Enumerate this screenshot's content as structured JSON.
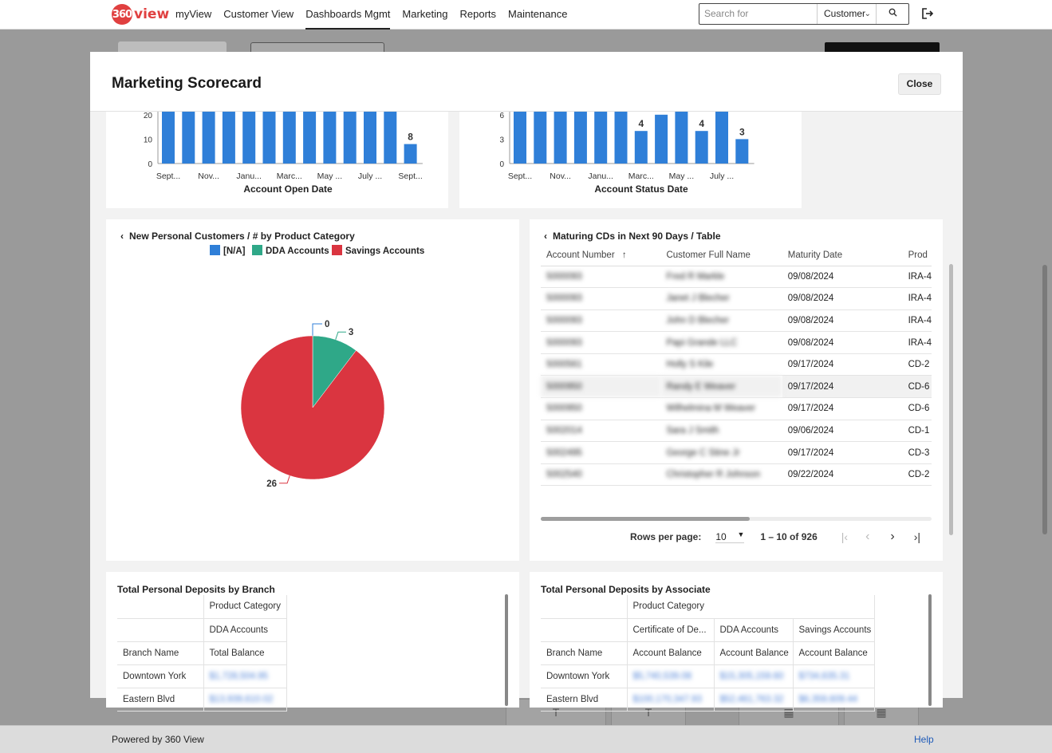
{
  "nav": {
    "logo_number": "360",
    "logo_word": "view",
    "links": [
      "myView",
      "Customer View",
      "Dashboards Mgmt",
      "Marketing",
      "Reports",
      "Maintenance"
    ],
    "active_link": "Dashboards Mgmt",
    "search_placeholder": "Search for",
    "search_scope": "Customer"
  },
  "footer": {
    "powered": "Powered by 360 View",
    "help": "Help"
  },
  "modal": {
    "title": "Marketing Scorecard",
    "close_label": "Close"
  },
  "open_date_chart": {
    "xlabel": "Account Open Date",
    "y_ticks": [
      0,
      10,
      20
    ],
    "x_ticks": [
      "Sept...",
      "Nov...",
      "Janu...",
      "Marc...",
      "May ...",
      "July ...",
      "Sept..."
    ],
    "bar_labels": [
      "8"
    ]
  },
  "status_date_chart": {
    "xlabel": "Account Status Date",
    "y_ticks": [
      0,
      3,
      6
    ],
    "x_ticks": [
      "Sept...",
      "Nov...",
      "Janu...",
      "Marc...",
      "May ...",
      "July ..."
    ],
    "bar_labels": [
      "4",
      "4",
      "3"
    ]
  },
  "chart_data": [
    {
      "type": "bar",
      "xlabel": "Account Open Date",
      "ylabel": "",
      "categories": [
        "Sept...",
        "",
        "Nov...",
        "",
        "Janu...",
        "",
        "Marc...",
        "",
        "May ...",
        "",
        "July ...",
        "",
        "Sept..."
      ],
      "values": [
        22,
        22,
        22,
        22,
        22,
        22,
        22,
        22,
        22,
        22,
        22,
        22,
        8
      ],
      "y_ticks": [
        0,
        10,
        20
      ],
      "data_labels": {
        "12": "8"
      }
    },
    {
      "type": "bar",
      "xlabel": "Account Status Date",
      "ylabel": "",
      "categories": [
        "Sept...",
        "",
        "Nov...",
        "",
        "Janu...",
        "",
        "Marc...",
        "",
        "May ...",
        "",
        "July ...",
        ""
      ],
      "values": [
        7,
        7,
        7,
        7,
        7,
        7,
        4,
        6,
        7,
        4,
        7,
        3
      ],
      "y_ticks": [
        0,
        3,
        6
      ],
      "data_labels": {
        "6": "4",
        "9": "4",
        "11": "3"
      }
    },
    {
      "type": "pie",
      "title": "New Personal Customers / # by Product Category",
      "legend": [
        "[N/A]",
        "DDA Accounts",
        "Savings Accounts"
      ],
      "colors": [
        "#2f7fd8",
        "#2fa888",
        "#da3540"
      ],
      "values": [
        0,
        3,
        26
      ]
    }
  ],
  "pie_card": {
    "title": "New Personal Customers / # by Product Category",
    "legend": [
      "[N/A]",
      "DDA Accounts",
      "Savings Accounts"
    ],
    "labels": [
      "0",
      "3",
      "26"
    ]
  },
  "cd_table": {
    "title": "Maturing CDs in Next 90 Days / Table",
    "columns": [
      "Account Number",
      "Customer Full Name",
      "Maturity Date",
      "Prod"
    ],
    "rows": [
      [
        "5000093",
        "Fred R Markle",
        "09/08/2024",
        "IRA-4"
      ],
      [
        "5000093",
        "Janet J Blecher",
        "09/08/2024",
        "IRA-4"
      ],
      [
        "5000093",
        "John D Blecher",
        "09/08/2024",
        "IRA-4"
      ],
      [
        "5000093",
        "Papi Grande LLC",
        "09/08/2024",
        "IRA-4"
      ],
      [
        "5000561",
        "Holly S Kile",
        "09/17/2024",
        "CD-2"
      ],
      [
        "5000950",
        "Randy E Weaver",
        "09/17/2024",
        "CD-6"
      ],
      [
        "5000950",
        "Wilhelmina M Weaver",
        "09/17/2024",
        "CD-6"
      ],
      [
        "5002014",
        "Sara J Smith",
        "09/06/2024",
        "CD-1"
      ],
      [
        "5002495",
        "George C Stine Jr",
        "09/17/2024",
        "CD-3"
      ],
      [
        "5002540",
        "Christopher R Johnson",
        "09/22/2024",
        "CD-2"
      ]
    ],
    "rows_per_page_label": "Rows per page:",
    "rows_per_page": "10",
    "range": "1 – 10 of 926"
  },
  "branch_table": {
    "title": "Total Personal Deposits by Branch",
    "h1": "Product Category",
    "h2": "DDA Accounts",
    "row_header": "Branch Name",
    "value_header": "Total Balance",
    "rows": [
      [
        "Downtown York",
        "$1,728,504.95"
      ],
      [
        "Eastern Blvd",
        "$13,939,610.02"
      ]
    ]
  },
  "associate_table": {
    "title": "Total Personal Deposits by Associate",
    "h1": "Product Category",
    "cats": [
      "Certificate of De...",
      "DDA Accounts",
      "Savings Accounts"
    ],
    "row_header": "Branch Name",
    "value_header": "Account Balance",
    "rows": [
      [
        "Downtown York",
        "$5,740,539.08",
        "$15,305,159.60",
        "$734,635.31"
      ],
      [
        "Eastern Blvd",
        "$100,170,347.93",
        "$52,461,763.32",
        "$6,359,609.44"
      ]
    ]
  }
}
